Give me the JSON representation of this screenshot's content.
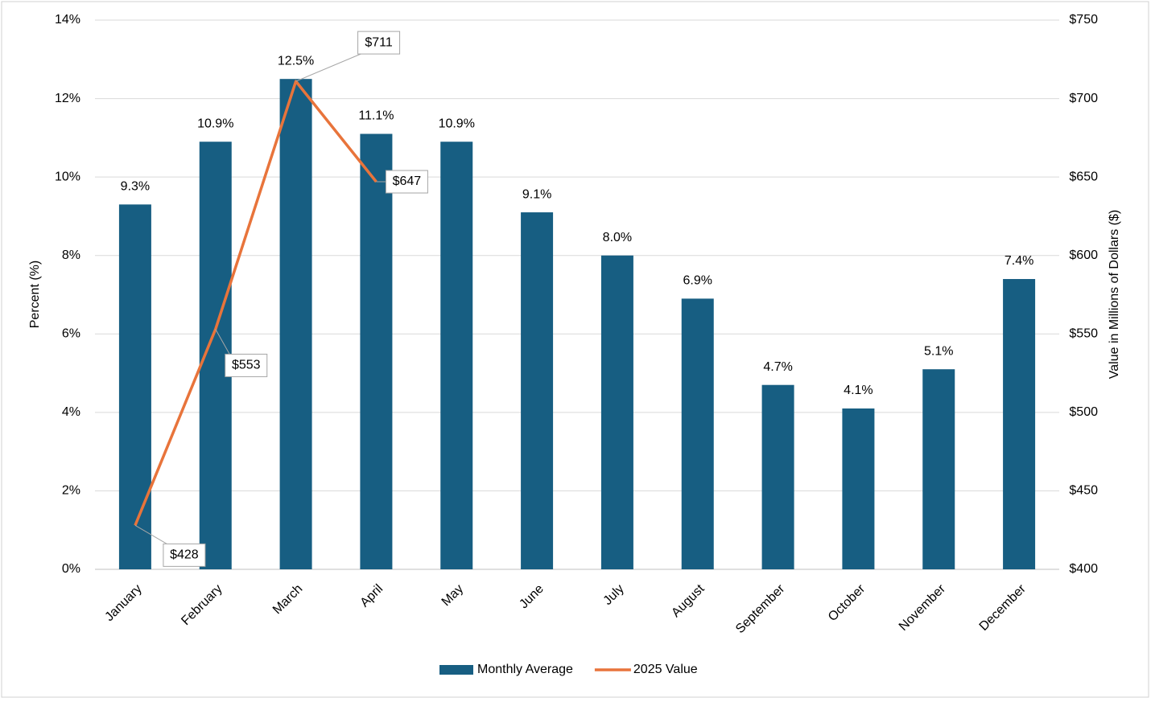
{
  "chart_data": {
    "type": "bar_line",
    "categories": [
      "January",
      "February",
      "March",
      "April",
      "May",
      "June",
      "July",
      "August",
      "September",
      "October",
      "November",
      "December"
    ],
    "series": [
      {
        "name": "Monthly Average",
        "type": "bar",
        "color": "#175e82",
        "values": [
          9.3,
          10.9,
          12.5,
          11.1,
          10.9,
          9.1,
          8.0,
          6.9,
          4.7,
          4.1,
          5.1,
          7.4
        ],
        "value_labels": [
          "9.3%",
          "10.9%",
          "12.5%",
          "11.1%",
          "10.9%",
          "9.1%",
          "8.0%",
          "6.9%",
          "4.7%",
          "4.1%",
          "5.1%",
          "7.4%"
        ]
      },
      {
        "name": "2025 Value",
        "type": "line",
        "axis": "y2",
        "color": "#e8743b",
        "values": [
          428,
          553,
          711,
          647,
          null,
          null,
          null,
          null,
          null,
          null,
          null,
          null
        ],
        "value_labels": [
          "$428",
          "$553",
          "$711",
          "$647",
          null,
          null,
          null,
          null,
          null,
          null,
          null,
          null
        ]
      }
    ],
    "ylabel": "Percent (%)",
    "y2label": "Value in Millions of Dollars ($)",
    "ylim": [
      0,
      14
    ],
    "yticks": [
      {
        "value": 0,
        "label": "0%"
      },
      {
        "value": 2,
        "label": "2%"
      },
      {
        "value": 4,
        "label": "4%"
      },
      {
        "value": 6,
        "label": "6%"
      },
      {
        "value": 8,
        "label": "8%"
      },
      {
        "value": 10,
        "label": "10%"
      },
      {
        "value": 12,
        "label": "12%"
      },
      {
        "value": 14,
        "label": "14%"
      }
    ],
    "y2lim": [
      400,
      750
    ],
    "y2ticks": [
      {
        "value": 400,
        "label": "$400"
      },
      {
        "value": 450,
        "label": "$450"
      },
      {
        "value": 500,
        "label": "$500"
      },
      {
        "value": 550,
        "label": "$550"
      },
      {
        "value": 600,
        "label": "$600"
      },
      {
        "value": 650,
        "label": "$650"
      },
      {
        "value": 700,
        "label": "$700"
      },
      {
        "value": 750,
        "label": "$750"
      }
    ],
    "grid": true,
    "legend": "bottom"
  }
}
